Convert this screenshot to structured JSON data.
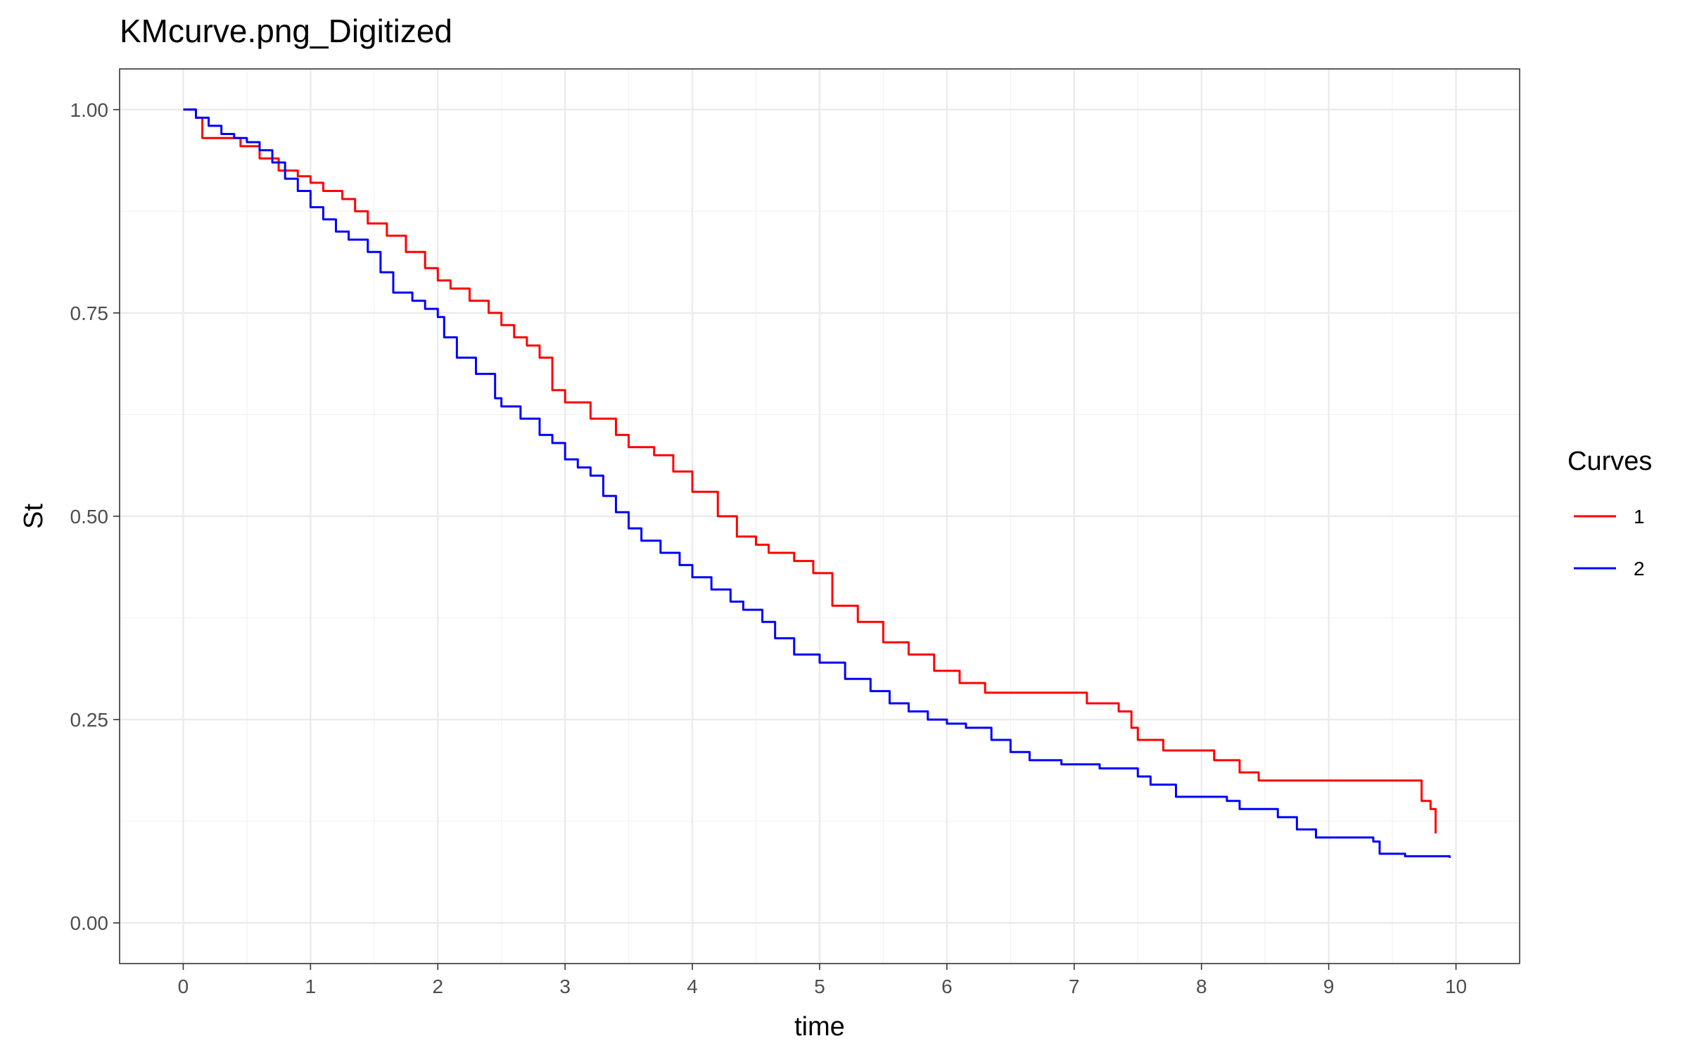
{
  "chart_data": {
    "type": "line",
    "step": true,
    "title": "KMcurve.png_Digitized",
    "xlabel": "time",
    "ylabel": "St",
    "xlim": [
      -0.5,
      10.5
    ],
    "ylim": [
      -0.05,
      1.05
    ],
    "x_ticks": [
      0,
      1,
      2,
      3,
      4,
      5,
      6,
      7,
      8,
      9,
      10
    ],
    "x_tick_labels": [
      "0",
      "1",
      "2",
      "3",
      "4",
      "5",
      "6",
      "7",
      "8",
      "9",
      "10"
    ],
    "y_ticks": [
      0,
      0.25,
      0.5,
      0.75,
      1
    ],
    "y_tick_labels": [
      "0.00",
      "0.25",
      "0.50",
      "0.75",
      "1.00"
    ],
    "grid": true,
    "legend": {
      "title": "Curves",
      "position": "right"
    },
    "series": [
      {
        "name": "1",
        "color": "#ff0000",
        "x": [
          0,
          0.1,
          0.15,
          0.3,
          0.45,
          0.6,
          0.75,
          0.9,
          1.0,
          1.1,
          1.25,
          1.35,
          1.45,
          1.6,
          1.75,
          1.9,
          2.0,
          2.1,
          2.25,
          2.4,
          2.5,
          2.6,
          2.7,
          2.8,
          2.9,
          3.0,
          3.2,
          3.4,
          3.5,
          3.7,
          3.85,
          4.0,
          4.2,
          4.35,
          4.5,
          4.6,
          4.8,
          4.95,
          5.1,
          5.3,
          5.5,
          5.7,
          5.9,
          6.1,
          6.3,
          6.5,
          7.0,
          7.1,
          7.35,
          7.45,
          7.5,
          7.7,
          8.0,
          8.1,
          8.3,
          8.45,
          9.2,
          9.7,
          9.73,
          9.8,
          9.84
        ],
        "y": [
          1.0,
          0.99,
          0.965,
          0.965,
          0.955,
          0.94,
          0.925,
          0.918,
          0.91,
          0.9,
          0.89,
          0.875,
          0.86,
          0.845,
          0.825,
          0.805,
          0.79,
          0.78,
          0.765,
          0.75,
          0.735,
          0.72,
          0.71,
          0.695,
          0.655,
          0.64,
          0.62,
          0.6,
          0.585,
          0.575,
          0.555,
          0.53,
          0.5,
          0.475,
          0.465,
          0.455,
          0.445,
          0.43,
          0.39,
          0.37,
          0.345,
          0.33,
          0.31,
          0.295,
          0.283,
          0.283,
          0.283,
          0.27,
          0.26,
          0.24,
          0.225,
          0.212,
          0.212,
          0.2,
          0.185,
          0.175,
          0.175,
          0.175,
          0.15,
          0.14,
          0.11
        ]
      },
      {
        "name": "2",
        "color": "#0000ff",
        "x": [
          0,
          0.1,
          0.2,
          0.3,
          0.4,
          0.5,
          0.6,
          0.7,
          0.8,
          0.9,
          1.0,
          1.1,
          1.2,
          1.3,
          1.45,
          1.55,
          1.65,
          1.8,
          1.9,
          2.0,
          2.05,
          2.15,
          2.3,
          2.45,
          2.5,
          2.65,
          2.8,
          2.9,
          3.0,
          3.1,
          3.2,
          3.3,
          3.4,
          3.5,
          3.6,
          3.75,
          3.9,
          4.0,
          4.15,
          4.3,
          4.4,
          4.55,
          4.65,
          4.8,
          5.0,
          5.2,
          5.4,
          5.55,
          5.7,
          5.85,
          6.0,
          6.15,
          6.35,
          6.5,
          6.65,
          6.9,
          7.2,
          7.5,
          7.6,
          7.8,
          8.2,
          8.3,
          8.6,
          8.75,
          8.9,
          9.1,
          9.35,
          9.4,
          9.6,
          9.9,
          9.95
        ],
        "y": [
          1.0,
          0.99,
          0.98,
          0.97,
          0.965,
          0.96,
          0.95,
          0.935,
          0.915,
          0.9,
          0.88,
          0.865,
          0.85,
          0.84,
          0.825,
          0.8,
          0.775,
          0.765,
          0.755,
          0.745,
          0.72,
          0.695,
          0.675,
          0.645,
          0.635,
          0.62,
          0.6,
          0.59,
          0.57,
          0.56,
          0.55,
          0.525,
          0.505,
          0.485,
          0.47,
          0.455,
          0.44,
          0.425,
          0.41,
          0.395,
          0.385,
          0.37,
          0.35,
          0.33,
          0.32,
          0.3,
          0.285,
          0.27,
          0.26,
          0.25,
          0.245,
          0.24,
          0.225,
          0.21,
          0.2,
          0.195,
          0.19,
          0.18,
          0.17,
          0.155,
          0.15,
          0.14,
          0.13,
          0.115,
          0.105,
          0.105,
          0.1,
          0.085,
          0.082,
          0.082,
          0.08
        ]
      }
    ]
  }
}
